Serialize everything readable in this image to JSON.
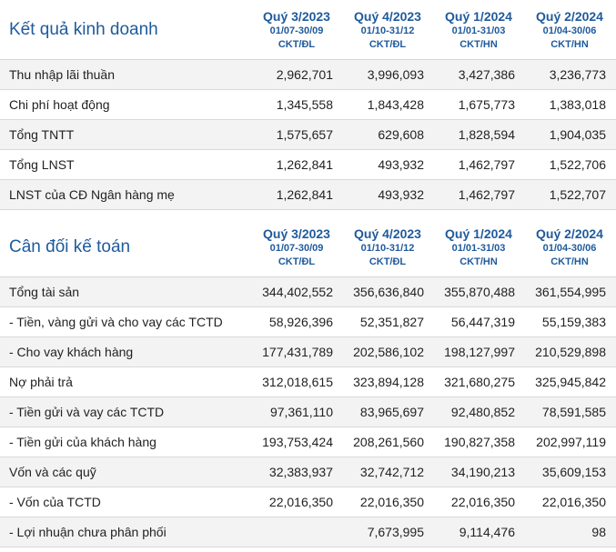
{
  "sections": [
    {
      "title": "Kết quả kinh doanh",
      "periods": [
        {
          "quarter": "Quý 3/2023",
          "range": "01/07-30/09",
          "type": "CKT/ĐL"
        },
        {
          "quarter": "Quý 4/2023",
          "range": "01/10-31/12",
          "type": "CKT/ĐL"
        },
        {
          "quarter": "Quý 1/2024",
          "range": "01/01-31/03",
          "type": "CKT/HN"
        },
        {
          "quarter": "Quý 2/2024",
          "range": "01/04-30/06",
          "type": "CKT/HN"
        }
      ],
      "rows": [
        {
          "label": "Thu nhập lãi thuần",
          "values": [
            "2,962,701",
            "3,996,093",
            "3,427,386",
            "3,236,773"
          ]
        },
        {
          "label": "Chi phí hoạt động",
          "values": [
            "1,345,558",
            "1,843,428",
            "1,675,773",
            "1,383,018"
          ]
        },
        {
          "label": "Tổng TNTT",
          "values": [
            "1,575,657",
            "629,608",
            "1,828,594",
            "1,904,035"
          ]
        },
        {
          "label": "Tổng LNST",
          "values": [
            "1,262,841",
            "493,932",
            "1,462,797",
            "1,522,706"
          ]
        },
        {
          "label": "LNST của CĐ Ngân hàng mẹ",
          "values": [
            "1,262,841",
            "493,932",
            "1,462,797",
            "1,522,707"
          ]
        }
      ]
    },
    {
      "title": "Cân đối kế toán",
      "periods": [
        {
          "quarter": "Quý 3/2023",
          "range": "01/07-30/09",
          "type": "CKT/ĐL"
        },
        {
          "quarter": "Quý 4/2023",
          "range": "01/10-31/12",
          "type": "CKT/ĐL"
        },
        {
          "quarter": "Quý 1/2024",
          "range": "01/01-31/03",
          "type": "CKT/HN"
        },
        {
          "quarter": "Quý 2/2024",
          "range": "01/04-30/06",
          "type": "CKT/HN"
        }
      ],
      "rows": [
        {
          "label": "Tổng tài sản",
          "values": [
            "344,402,552",
            "356,636,840",
            "355,870,488",
            "361,554,995"
          ]
        },
        {
          "label": "- Tiền, vàng gửi và cho vay các TCTD",
          "values": [
            "58,926,396",
            "52,351,827",
            "56,447,319",
            "55,159,383"
          ]
        },
        {
          "label": "- Cho vay khách hàng",
          "values": [
            "177,431,789",
            "202,586,102",
            "198,127,997",
            "210,529,898"
          ]
        },
        {
          "label": "Nợ phải trả",
          "values": [
            "312,018,615",
            "323,894,128",
            "321,680,275",
            "325,945,842"
          ]
        },
        {
          "label": "- Tiền gửi và vay các TCTD",
          "values": [
            "97,361,110",
            "83,965,697",
            "92,480,852",
            "78,591,585"
          ]
        },
        {
          "label": "- Tiền gửi của khách hàng",
          "values": [
            "193,753,424",
            "208,261,560",
            "190,827,358",
            "202,997,119"
          ]
        },
        {
          "label": "Vốn và các quỹ",
          "values": [
            "32,383,937",
            "32,742,712",
            "34,190,213",
            "35,609,153"
          ]
        },
        {
          "label": "- Vốn của TCTD",
          "values": [
            "22,016,350",
            "22,016,350",
            "22,016,350",
            "22,016,350"
          ]
        },
        {
          "label": "- Lợi nhuận chưa phân phối",
          "values": [
            "",
            "7,673,995",
            "9,114,476",
            "98"
          ]
        }
      ]
    }
  ]
}
